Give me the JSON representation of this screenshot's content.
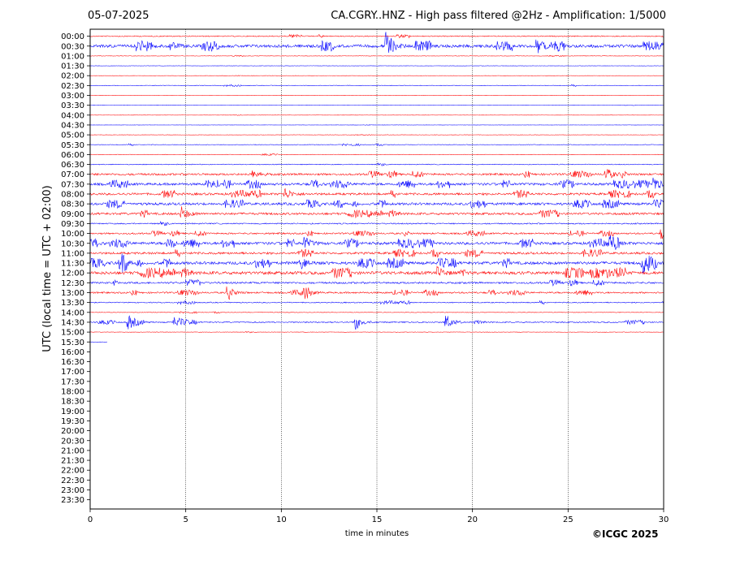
{
  "header": {
    "date": "05-07-2025",
    "title": "CA.CGRY..HNZ - High pass filtered @2Hz - Amplification: 1/5000"
  },
  "credit": "©ICGC 2025",
  "chart_data": {
    "type": "helicorder",
    "title": "CA.CGRY..HNZ - High pass filtered @2Hz - Amplification: 1/5000",
    "xlabel": "time in minutes",
    "ylabel": "UTC (local time = UTC + 02:00)",
    "xlim": [
      0,
      30
    ],
    "xticks": [
      "0",
      "5",
      "10",
      "15",
      "20",
      "25",
      "30"
    ],
    "vertical_gridlines_at": [
      5,
      10,
      15,
      20,
      25
    ],
    "row_labels": [
      "00:00",
      "00:30",
      "01:00",
      "01:30",
      "02:00",
      "02:30",
      "03:00",
      "03:30",
      "04:00",
      "04:30",
      "05:00",
      "05:30",
      "06:00",
      "06:30",
      "07:00",
      "07:30",
      "08:00",
      "08:30",
      "09:00",
      "09:30",
      "10:00",
      "10:30",
      "11:00",
      "11:30",
      "12:00",
      "12:30",
      "13:00",
      "13:30",
      "14:00",
      "14:30",
      "15:00",
      "15:30",
      "16:00",
      "16:30",
      "17:00",
      "17:30",
      "18:00",
      "18:30",
      "19:00",
      "19:30",
      "20:00",
      "20:30",
      "21:00",
      "21:30",
      "22:00",
      "22:30",
      "23:00",
      "23:30"
    ],
    "trace_colors": [
      "#ff0000",
      "#0000ff"
    ],
    "data_end_minute_last_row": 0.9,
    "row_activity": [
      1,
      3,
      0.4,
      0.3,
      0.2,
      0.6,
      0.2,
      0.2,
      0.2,
      0.2,
      0.3,
      0.6,
      0.5,
      0.8,
      2,
      2.4,
      2.2,
      2.4,
      2.2,
      1.2,
      1.6,
      2.6,
      2.2,
      2.8,
      3,
      1.8,
      1.6,
      1,
      0.5,
      1.2,
      0.4,
      0.2
    ],
    "events": [
      {
        "row": "00:30",
        "minute": 15.5,
        "amplitude": 18
      },
      {
        "row": "00:30",
        "minute": 4.2,
        "amplitude": 5
      },
      {
        "row": "00:30",
        "minute": 23.4,
        "amplitude": 8
      },
      {
        "row": "07:00",
        "minute": 8.5,
        "amplitude": 6
      },
      {
        "row": "07:00",
        "minute": 27.0,
        "amplitude": 8
      },
      {
        "row": "07:30",
        "minute": 29.5,
        "amplitude": 9
      },
      {
        "row": "08:00",
        "minute": 10.2,
        "amplitude": 7
      },
      {
        "row": "09:00",
        "minute": 4.8,
        "amplitude": 8
      },
      {
        "row": "10:00",
        "minute": 29.9,
        "amplitude": 7
      },
      {
        "row": "10:30",
        "minute": 11.2,
        "amplitude": 8
      },
      {
        "row": "10:30",
        "minute": 27.2,
        "amplitude": 7
      },
      {
        "row": "11:30",
        "minute": 1.6,
        "amplitude": 10
      },
      {
        "row": "11:30",
        "minute": 11.0,
        "amplitude": 7
      },
      {
        "row": "11:30",
        "minute": 28.9,
        "amplitude": 14
      },
      {
        "row": "12:00",
        "minute": 18.2,
        "amplitude": 7
      },
      {
        "row": "13:00",
        "minute": 7.2,
        "amplitude": 7
      },
      {
        "row": "13:00",
        "minute": 11.2,
        "amplitude": 8
      },
      {
        "row": "14:30",
        "minute": 2.0,
        "amplitude": 7
      },
      {
        "row": "14:30",
        "minute": 4.4,
        "amplitude": 7
      },
      {
        "row": "14:30",
        "minute": 13.9,
        "amplitude": 9
      },
      {
        "row": "14:30",
        "minute": 18.6,
        "amplitude": 10
      }
    ]
  }
}
